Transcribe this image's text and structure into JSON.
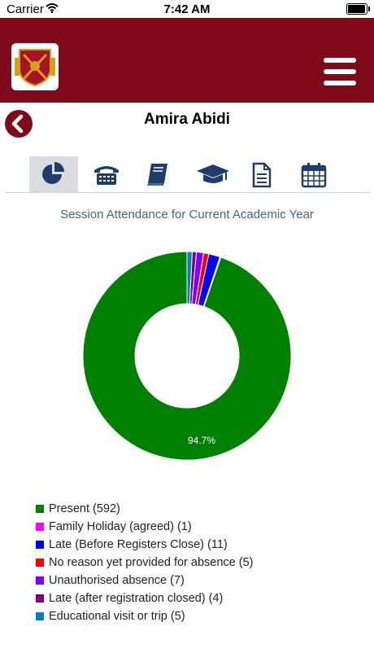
{
  "status": {
    "carrier": "Carrier",
    "time": "7:42 AM"
  },
  "header": {
    "logo_icon": "school-crest-icon",
    "menu_icon": "hamburger-menu-icon"
  },
  "page": {
    "title": "Amira Abidi",
    "back_icon": "chevron-left-icon"
  },
  "tabs": [
    {
      "icon": "pie-chart-icon",
      "active": true
    },
    {
      "icon": "telephone-icon",
      "active": false
    },
    {
      "icon": "book-icon",
      "active": false
    },
    {
      "icon": "graduation-cap-icon",
      "active": false
    },
    {
      "icon": "document-icon",
      "active": false
    },
    {
      "icon": "calendar-icon",
      "active": false
    }
  ],
  "colors": {
    "brand": "#7f0a1a",
    "chart_title": "#3c6a80",
    "tab_active_bg": "#dadcdf"
  },
  "chart_data": {
    "type": "pie",
    "style": "donut",
    "title": "Session Attendance for Current Academic Year",
    "slice_label": "94.7%",
    "legend_placement": "bottom-left",
    "series": [
      {
        "name": "Present (592)",
        "value": 592,
        "color": "#008000"
      },
      {
        "name": "Family Holiday (agreed) (1)",
        "value": 1,
        "color": "#ff00ff"
      },
      {
        "name": "Late (Before Registers Close) (11)",
        "value": 11,
        "color": "#0000ff"
      },
      {
        "name": "No reason yet provided for absence (5)",
        "value": 5,
        "color": "#ff0000"
      },
      {
        "name": "Unauthorised absence (7)",
        "value": 7,
        "color": "#8000ff"
      },
      {
        "name": "Late (after registration closed) (4)",
        "value": 4,
        "color": "#800080"
      },
      {
        "name": "Educational visit or trip (5)",
        "value": 5,
        "color": "#0080c0"
      }
    ]
  }
}
